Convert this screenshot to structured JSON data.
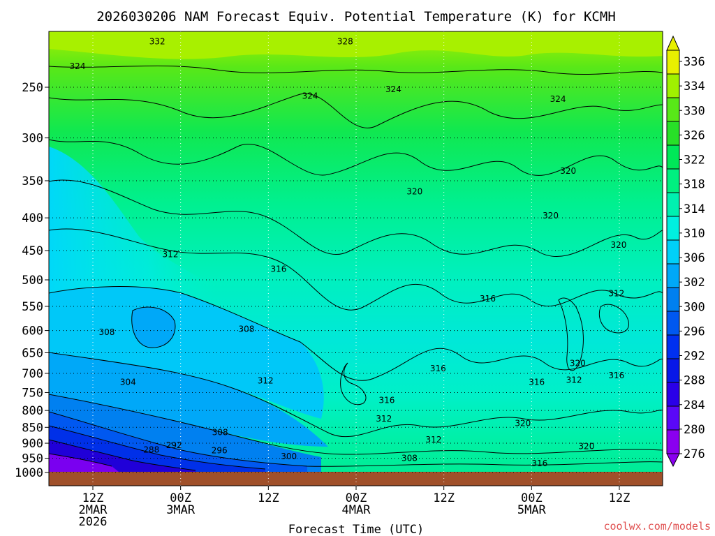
{
  "chart_data": {
    "type": "heatmap",
    "title": "2026030206 NAM Forecast Equiv. Potential Temperature (K) for KCMH",
    "xlabel": "Forecast Time (UTC)",
    "ylabel": "",
    "y_axis": {
      "units": "hPa",
      "range": [
        200,
        1000
      ],
      "ticks": [
        250,
        300,
        350,
        400,
        450,
        500,
        550,
        600,
        650,
        700,
        750,
        800,
        850,
        900,
        950,
        1000
      ],
      "tick_labels": [
        "250",
        "300",
        "350",
        "400",
        "450",
        "500",
        "550",
        "600",
        "650",
        "700",
        "750",
        "800",
        "850",
        "900",
        "950",
        "1000"
      ]
    },
    "x_axis": {
      "units": "hours since 2026-03-02 06Z",
      "range": [
        0,
        84
      ],
      "ticks": [
        6,
        18,
        30,
        42,
        54,
        66,
        78
      ],
      "tick_labels": [
        [
          "12Z",
          "2MAR",
          "2026"
        ],
        [
          "00Z",
          "3MAR"
        ],
        [
          "12Z"
        ],
        [
          "00Z",
          "4MAR"
        ],
        [
          "12Z"
        ],
        [
          "00Z",
          "5MAR"
        ],
        [
          "12Z"
        ]
      ]
    },
    "colorbar": {
      "levels": [
        276,
        280,
        284,
        288,
        292,
        296,
        300,
        302,
        306,
        310,
        314,
        318,
        322,
        326,
        330,
        334,
        336
      ],
      "labels": [
        "276",
        "280",
        "284",
        "288",
        "292",
        "296",
        "300",
        "302",
        "306",
        "310",
        "314",
        "318",
        "322",
        "326",
        "330",
        "334",
        "336"
      ],
      "colors": [
        "#8a00f0",
        "#5a08f8",
        "#2a00e8",
        "#0818e8",
        "#0030f0",
        "#0058f0",
        "#0080f0",
        "#00a8f8",
        "#00d0f8",
        "#00f0e0",
        "#00f0b0",
        "#00f080",
        "#00e858",
        "#28e028",
        "#58e818",
        "#a0f000",
        "#e8f000"
      ]
    },
    "contour_labels": [
      {
        "text": "332",
        "hour": 14.8,
        "p": 212
      },
      {
        "text": "328",
        "hour": 40.5,
        "p": 212
      },
      {
        "text": "324",
        "hour": 3.9,
        "p": 232
      },
      {
        "text": "324",
        "hour": 35.7,
        "p": 258
      },
      {
        "text": "324",
        "hour": 47.1,
        "p": 252
      },
      {
        "text": "324",
        "hour": 69.6,
        "p": 261
      },
      {
        "text": "320",
        "hour": 71.0,
        "p": 338
      },
      {
        "text": "320",
        "hour": 50.0,
        "p": 364
      },
      {
        "text": "320",
        "hour": 68.6,
        "p": 397
      },
      {
        "text": "320",
        "hour": 77.9,
        "p": 441
      },
      {
        "text": "312",
        "hour": 16.6,
        "p": 456
      },
      {
        "text": "316",
        "hour": 31.4,
        "p": 481
      },
      {
        "text": "316",
        "hour": 60.0,
        "p": 535
      },
      {
        "text": "312",
        "hour": 77.6,
        "p": 525
      },
      {
        "text": "308",
        "hour": 7.9,
        "p": 604
      },
      {
        "text": "308",
        "hour": 27.0,
        "p": 597
      },
      {
        "text": "320",
        "hour": 72.3,
        "p": 675
      },
      {
        "text": "316",
        "hour": 53.2,
        "p": 688
      },
      {
        "text": "316",
        "hour": 77.6,
        "p": 705
      },
      {
        "text": "304",
        "hour": 10.8,
        "p": 722
      },
      {
        "text": "312",
        "hour": 29.6,
        "p": 719
      },
      {
        "text": "312",
        "hour": 71.8,
        "p": 717
      },
      {
        "text": "316",
        "hour": 66.7,
        "p": 722
      },
      {
        "text": "316",
        "hour": 46.2,
        "p": 771
      },
      {
        "text": "312",
        "hour": 45.8,
        "p": 824
      },
      {
        "text": "320",
        "hour": 64.8,
        "p": 838
      },
      {
        "text": "308",
        "hour": 23.4,
        "p": 865
      },
      {
        "text": "312",
        "hour": 52.6,
        "p": 889
      },
      {
        "text": "292",
        "hour": 17.1,
        "p": 907
      },
      {
        "text": "296",
        "hour": 23.3,
        "p": 924
      },
      {
        "text": "288",
        "hour": 14.0,
        "p": 922
      },
      {
        "text": "320",
        "hour": 73.5,
        "p": 910
      },
      {
        "text": "300",
        "hour": 32.8,
        "p": 944
      },
      {
        "text": "308",
        "hour": 49.3,
        "p": 950
      },
      {
        "text": "316",
        "hour": 67.1,
        "p": 968
      }
    ]
  },
  "credit": "coolwx.com/models"
}
